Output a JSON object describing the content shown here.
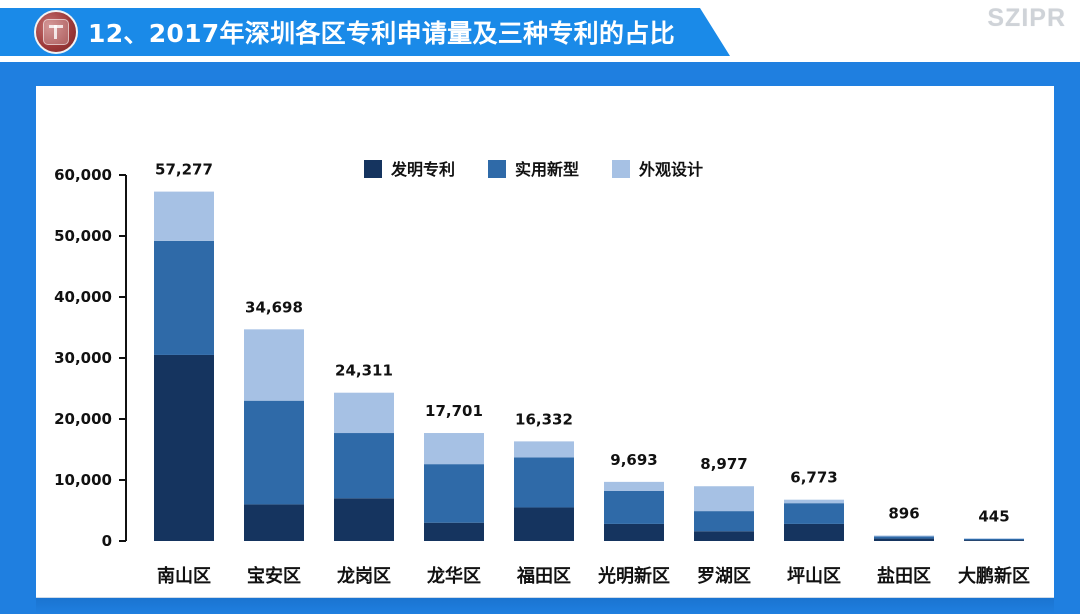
{
  "header": {
    "title": "12、2017年深圳各区专利申请量及三种专利的占比",
    "brand": "SZIPR"
  },
  "colors": {
    "background": "#1f7fe0",
    "title_bar": "#1a8ae8",
    "invention": "#15345f",
    "utility": "#2f6aa8",
    "design": "#a6c1e4",
    "axis": "#111111",
    "panel": "#ffffff"
  },
  "chart_data": {
    "type": "bar",
    "stacked": true,
    "title": "",
    "xlabel": "",
    "ylabel": "",
    "ylim": [
      0,
      60000
    ],
    "yticks": [
      0,
      10000,
      20000,
      30000,
      40000,
      50000,
      60000
    ],
    "ytick_labels": [
      "0",
      "10,000",
      "20,000",
      "30,000",
      "40,000",
      "50,000",
      "60,000"
    ],
    "legend": {
      "position": "top-center",
      "items": [
        "发明专利",
        "实用新型",
        "外观设计"
      ]
    },
    "categories": [
      "南山区",
      "宝安区",
      "龙岗区",
      "龙华区",
      "福田区",
      "光明新区",
      "罗湖区",
      "坪山区",
      "盐田区",
      "大鹏新区"
    ],
    "totals": [
      57277,
      34698,
      24311,
      17701,
      16332,
      9693,
      8977,
      6773,
      896,
      445
    ],
    "total_labels": [
      "57,277",
      "34,698",
      "24,311",
      "17,701",
      "16,332",
      "9,693",
      "8,977",
      "6,773",
      "896",
      "445"
    ],
    "series": [
      {
        "name": "发明专利",
        "color": "#15345f",
        "values": [
          30500,
          6000,
          7000,
          3000,
          5500,
          2800,
          1600,
          2800,
          400,
          150
        ]
      },
      {
        "name": "实用新型",
        "color": "#2f6aa8",
        "values": [
          18700,
          17000,
          10700,
          9600,
          8200,
          5400,
          3300,
          3400,
          350,
          200
        ]
      },
      {
        "name": "外观设计",
        "color": "#a6c1e4",
        "values": [
          8077,
          11698,
          6611,
          5101,
          2632,
          1493,
          4077,
          573,
          146,
          95
        ]
      }
    ]
  }
}
